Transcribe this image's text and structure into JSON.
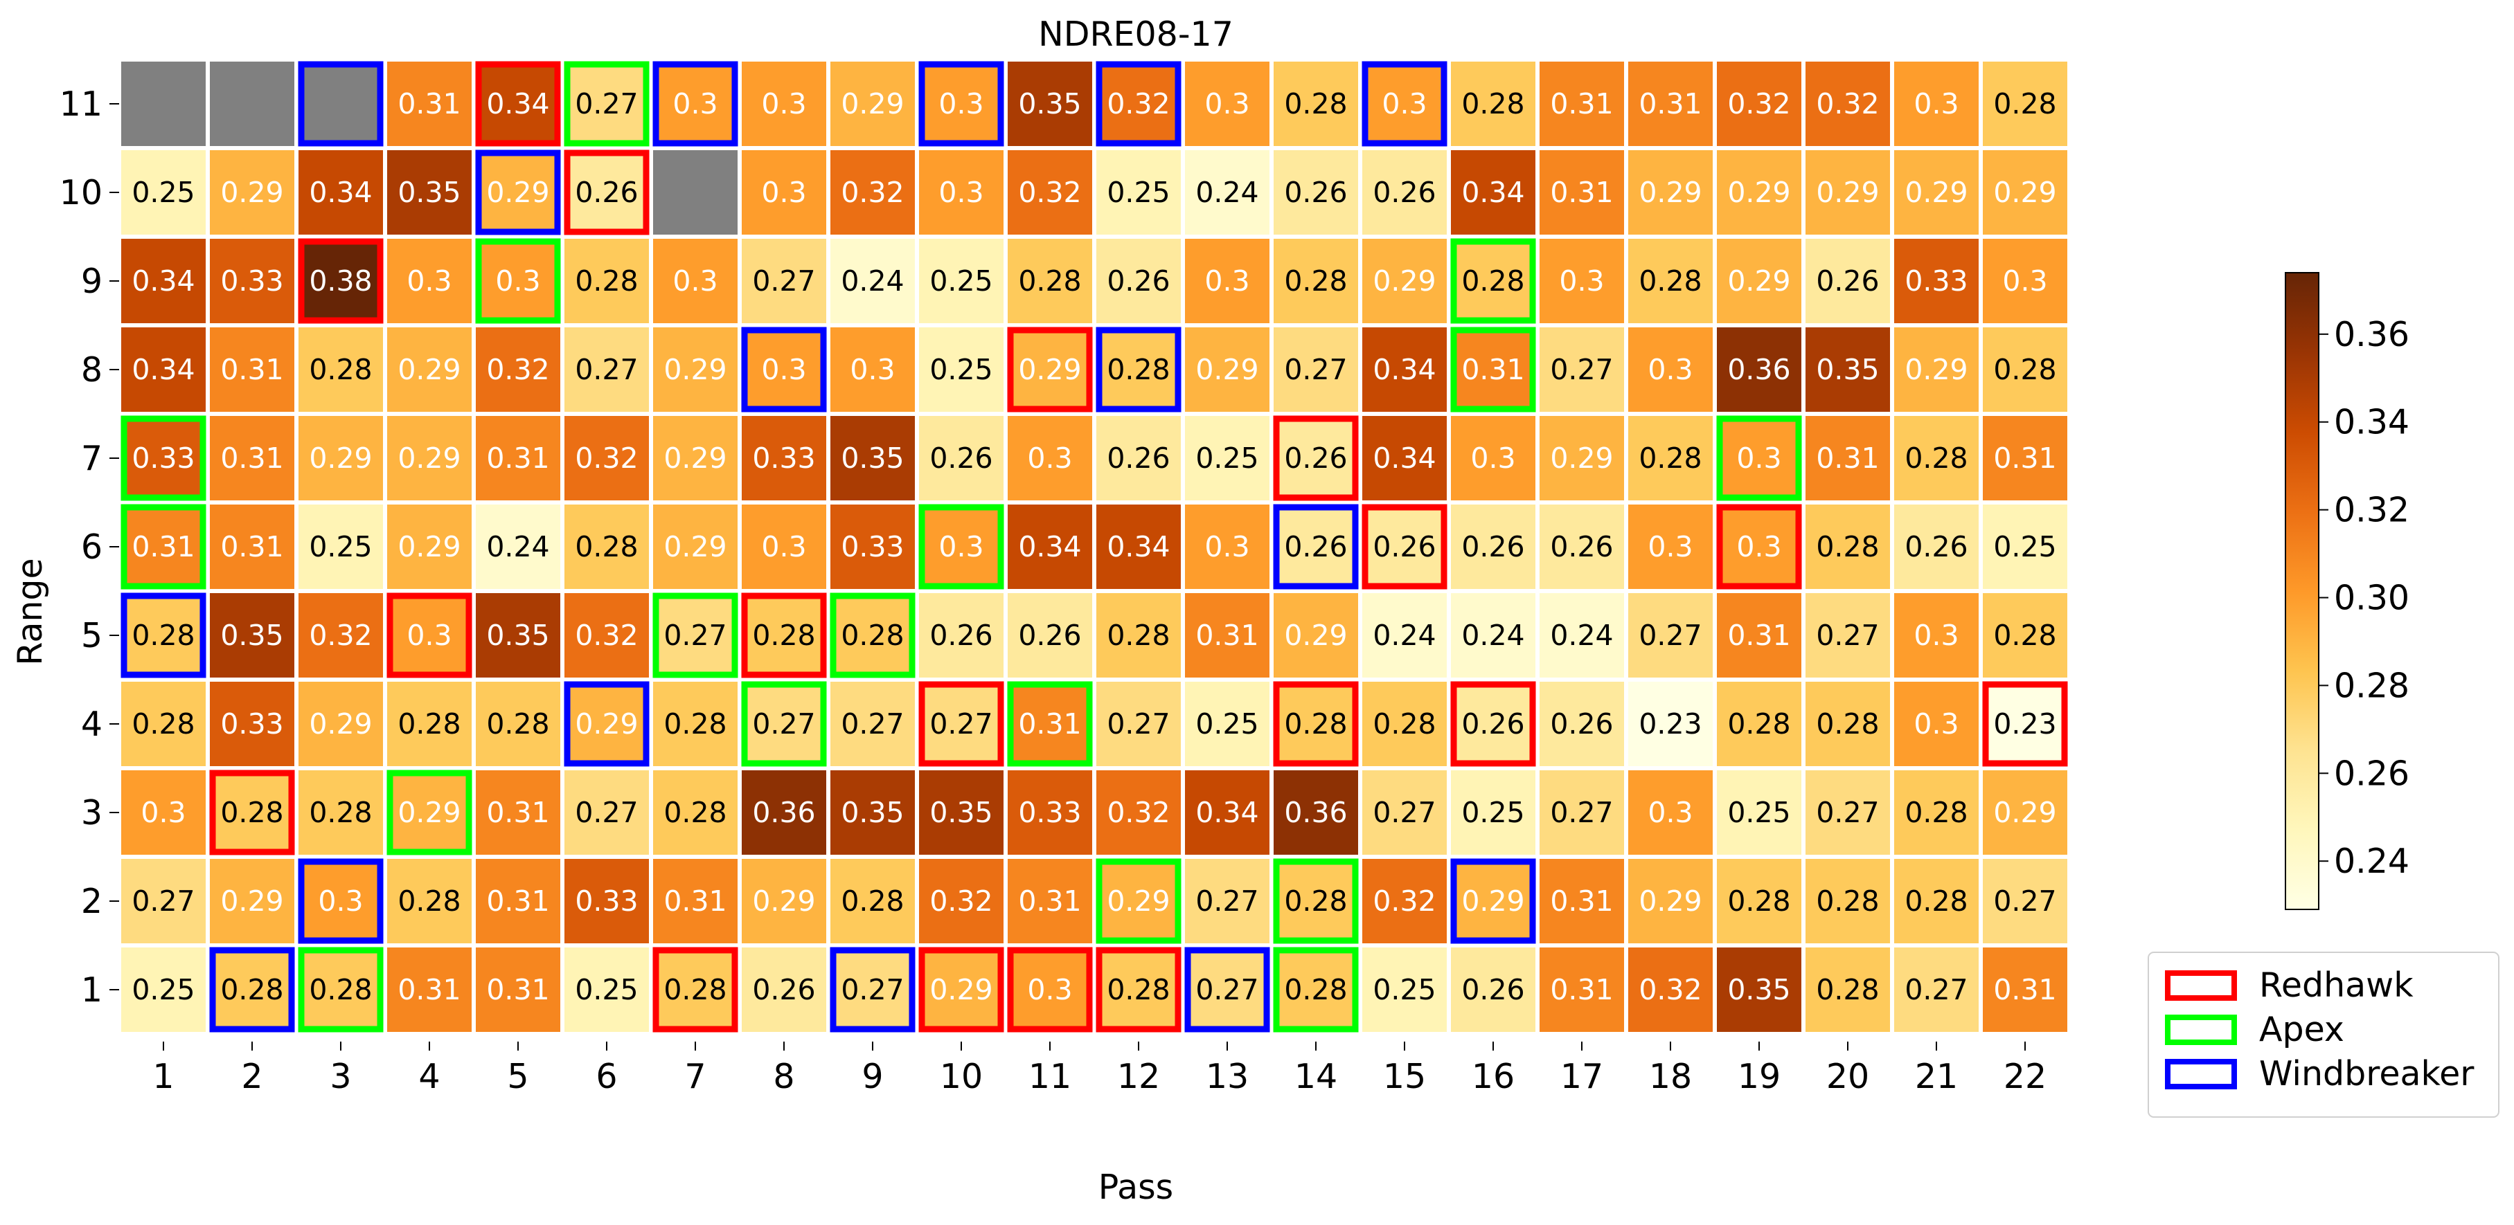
{
  "chart_data": {
    "type": "heatmap",
    "title": "NDRE08-17",
    "xlabel": "Pass",
    "ylabel": "Range",
    "x": [
      1,
      2,
      3,
      4,
      5,
      6,
      7,
      8,
      9,
      10,
      11,
      12,
      13,
      14,
      15,
      16,
      17,
      18,
      19,
      20,
      21,
      22
    ],
    "y": [
      11,
      10,
      9,
      8,
      7,
      6,
      5,
      4,
      3,
      2,
      1
    ],
    "values": [
      [
        null,
        null,
        null,
        0.31,
        0.34,
        0.27,
        0.3,
        0.3,
        0.29,
        0.3,
        0.35,
        0.32,
        0.3,
        0.28,
        0.3,
        0.28,
        0.31,
        0.31,
        0.32,
        0.32,
        0.3,
        0.28
      ],
      [
        0.25,
        0.29,
        0.34,
        0.35,
        0.29,
        0.26,
        null,
        0.3,
        0.32,
        0.3,
        0.32,
        0.25,
        0.24,
        0.26,
        0.26,
        0.34,
        0.31,
        0.29,
        0.29,
        0.29,
        0.29,
        0.29
      ],
      [
        0.34,
        0.33,
        0.38,
        0.3,
        0.3,
        0.28,
        0.3,
        0.27,
        0.24,
        0.25,
        0.28,
        0.26,
        0.3,
        0.28,
        0.29,
        0.28,
        0.3,
        0.28,
        0.29,
        0.26,
        0.33,
        0.3
      ],
      [
        0.34,
        0.31,
        0.28,
        0.29,
        0.32,
        0.27,
        0.29,
        0.3,
        0.3,
        0.25,
        0.29,
        0.28,
        0.29,
        0.27,
        0.34,
        0.31,
        0.27,
        0.3,
        0.36,
        0.35,
        0.29,
        0.28
      ],
      [
        0.33,
        0.31,
        0.29,
        0.29,
        0.31,
        0.32,
        0.29,
        0.33,
        0.35,
        0.26,
        0.3,
        0.26,
        0.25,
        0.26,
        0.34,
        0.3,
        0.29,
        0.28,
        0.3,
        0.31,
        0.28,
        0.31
      ],
      [
        0.31,
        0.31,
        0.25,
        0.29,
        0.24,
        0.28,
        0.29,
        0.3,
        0.33,
        0.3,
        0.34,
        0.34,
        0.3,
        0.26,
        0.26,
        0.26,
        0.26,
        0.3,
        0.3,
        0.28,
        0.26,
        0.25
      ],
      [
        0.28,
        0.35,
        0.32,
        0.3,
        0.35,
        0.32,
        0.27,
        0.28,
        0.28,
        0.26,
        0.26,
        0.28,
        0.31,
        0.29,
        0.24,
        0.24,
        0.24,
        0.27,
        0.31,
        0.27,
        0.3,
        0.28
      ],
      [
        0.28,
        0.33,
        0.29,
        0.28,
        0.28,
        0.29,
        0.28,
        0.27,
        0.27,
        0.27,
        0.31,
        0.27,
        0.25,
        0.28,
        0.28,
        0.26,
        0.26,
        0.23,
        0.28,
        0.28,
        0.3,
        0.23
      ],
      [
        0.3,
        0.28,
        0.28,
        0.29,
        0.31,
        0.27,
        0.28,
        0.36,
        0.35,
        0.35,
        0.33,
        0.32,
        0.34,
        0.36,
        0.27,
        0.25,
        0.27,
        0.3,
        0.25,
        0.27,
        0.28,
        0.29
      ],
      [
        0.27,
        0.29,
        0.3,
        0.28,
        0.31,
        0.33,
        0.31,
        0.29,
        0.28,
        0.32,
        0.31,
        0.29,
        0.27,
        0.28,
        0.32,
        0.29,
        0.31,
        0.29,
        0.28,
        0.28,
        0.28,
        0.27
      ],
      [
        0.25,
        0.28,
        0.28,
        0.31,
        0.31,
        0.25,
        0.28,
        0.26,
        0.27,
        0.29,
        0.3,
        0.28,
        0.27,
        0.28,
        0.25,
        0.26,
        0.31,
        0.32,
        0.35,
        0.28,
        0.27,
        0.31
      ]
    ],
    "missing_color": "#808080",
    "colormap": "YlOrBr",
    "colorbar": {
      "ticks": [
        "0.24",
        "0.26",
        "0.28",
        "0.30",
        "0.32",
        "0.34",
        "0.36"
      ],
      "range": [
        0.229,
        0.374
      ]
    },
    "highlights": [
      {
        "x": 5,
        "y": 11,
        "variety": "Redhawk"
      },
      {
        "x": 6,
        "y": 11,
        "variety": "Apex"
      },
      {
        "x": 3,
        "y": 11,
        "variety": "Windbreaker"
      },
      {
        "x": 7,
        "y": 11,
        "variety": "Windbreaker"
      },
      {
        "x": 10,
        "y": 11,
        "variety": "Windbreaker"
      },
      {
        "x": 12,
        "y": 11,
        "variety": "Windbreaker"
      },
      {
        "x": 15,
        "y": 11,
        "variety": "Windbreaker"
      },
      {
        "x": 5,
        "y": 10,
        "variety": "Windbreaker"
      },
      {
        "x": 6,
        "y": 10,
        "variety": "Redhawk"
      },
      {
        "x": 3,
        "y": 9,
        "variety": "Redhawk"
      },
      {
        "x": 5,
        "y": 9,
        "variety": "Apex"
      },
      {
        "x": 16,
        "y": 9,
        "variety": "Apex"
      },
      {
        "x": 8,
        "y": 8,
        "variety": "Windbreaker"
      },
      {
        "x": 11,
        "y": 8,
        "variety": "Redhawk"
      },
      {
        "x": 12,
        "y": 8,
        "variety": "Windbreaker"
      },
      {
        "x": 16,
        "y": 8,
        "variety": "Apex"
      },
      {
        "x": 1,
        "y": 7,
        "variety": "Apex"
      },
      {
        "x": 14,
        "y": 7,
        "variety": "Redhawk"
      },
      {
        "x": 19,
        "y": 7,
        "variety": "Apex"
      },
      {
        "x": 1,
        "y": 6,
        "variety": "Apex"
      },
      {
        "x": 10,
        "y": 6,
        "variety": "Apex"
      },
      {
        "x": 14,
        "y": 6,
        "variety": "Windbreaker"
      },
      {
        "x": 15,
        "y": 6,
        "variety": "Redhawk"
      },
      {
        "x": 19,
        "y": 6,
        "variety": "Redhawk"
      },
      {
        "x": 1,
        "y": 5,
        "variety": "Windbreaker"
      },
      {
        "x": 4,
        "y": 5,
        "variety": "Redhawk"
      },
      {
        "x": 7,
        "y": 5,
        "variety": "Apex"
      },
      {
        "x": 8,
        "y": 5,
        "variety": "Redhawk"
      },
      {
        "x": 9,
        "y": 5,
        "variety": "Apex"
      },
      {
        "x": 6,
        "y": 4,
        "variety": "Windbreaker"
      },
      {
        "x": 8,
        "y": 4,
        "variety": "Apex"
      },
      {
        "x": 10,
        "y": 4,
        "variety": "Redhawk"
      },
      {
        "x": 11,
        "y": 4,
        "variety": "Apex"
      },
      {
        "x": 14,
        "y": 4,
        "variety": "Redhawk"
      },
      {
        "x": 16,
        "y": 4,
        "variety": "Redhawk"
      },
      {
        "x": 22,
        "y": 4,
        "variety": "Redhawk"
      },
      {
        "x": 2,
        "y": 3,
        "variety": "Redhawk"
      },
      {
        "x": 4,
        "y": 3,
        "variety": "Apex"
      },
      {
        "x": 3,
        "y": 2,
        "variety": "Windbreaker"
      },
      {
        "x": 12,
        "y": 2,
        "variety": "Apex"
      },
      {
        "x": 14,
        "y": 2,
        "variety": "Apex"
      },
      {
        "x": 16,
        "y": 2,
        "variety": "Windbreaker"
      },
      {
        "x": 2,
        "y": 1,
        "variety": "Windbreaker"
      },
      {
        "x": 3,
        "y": 1,
        "variety": "Apex"
      },
      {
        "x": 7,
        "y": 1,
        "variety": "Redhawk"
      },
      {
        "x": 9,
        "y": 1,
        "variety": "Windbreaker"
      },
      {
        "x": 10,
        "y": 1,
        "variety": "Redhawk"
      },
      {
        "x": 11,
        "y": 1,
        "variety": "Redhawk"
      },
      {
        "x": 12,
        "y": 1,
        "variety": "Redhawk"
      },
      {
        "x": 13,
        "y": 1,
        "variety": "Windbreaker"
      },
      {
        "x": 14,
        "y": 1,
        "variety": "Apex"
      }
    ],
    "legend": {
      "placement": "bottom-right",
      "entries": [
        {
          "label": "Redhawk",
          "color": "#ff0000"
        },
        {
          "label": "Apex",
          "color": "#00ff00"
        },
        {
          "label": "Windbreaker",
          "color": "#0000ff"
        }
      ]
    }
  }
}
